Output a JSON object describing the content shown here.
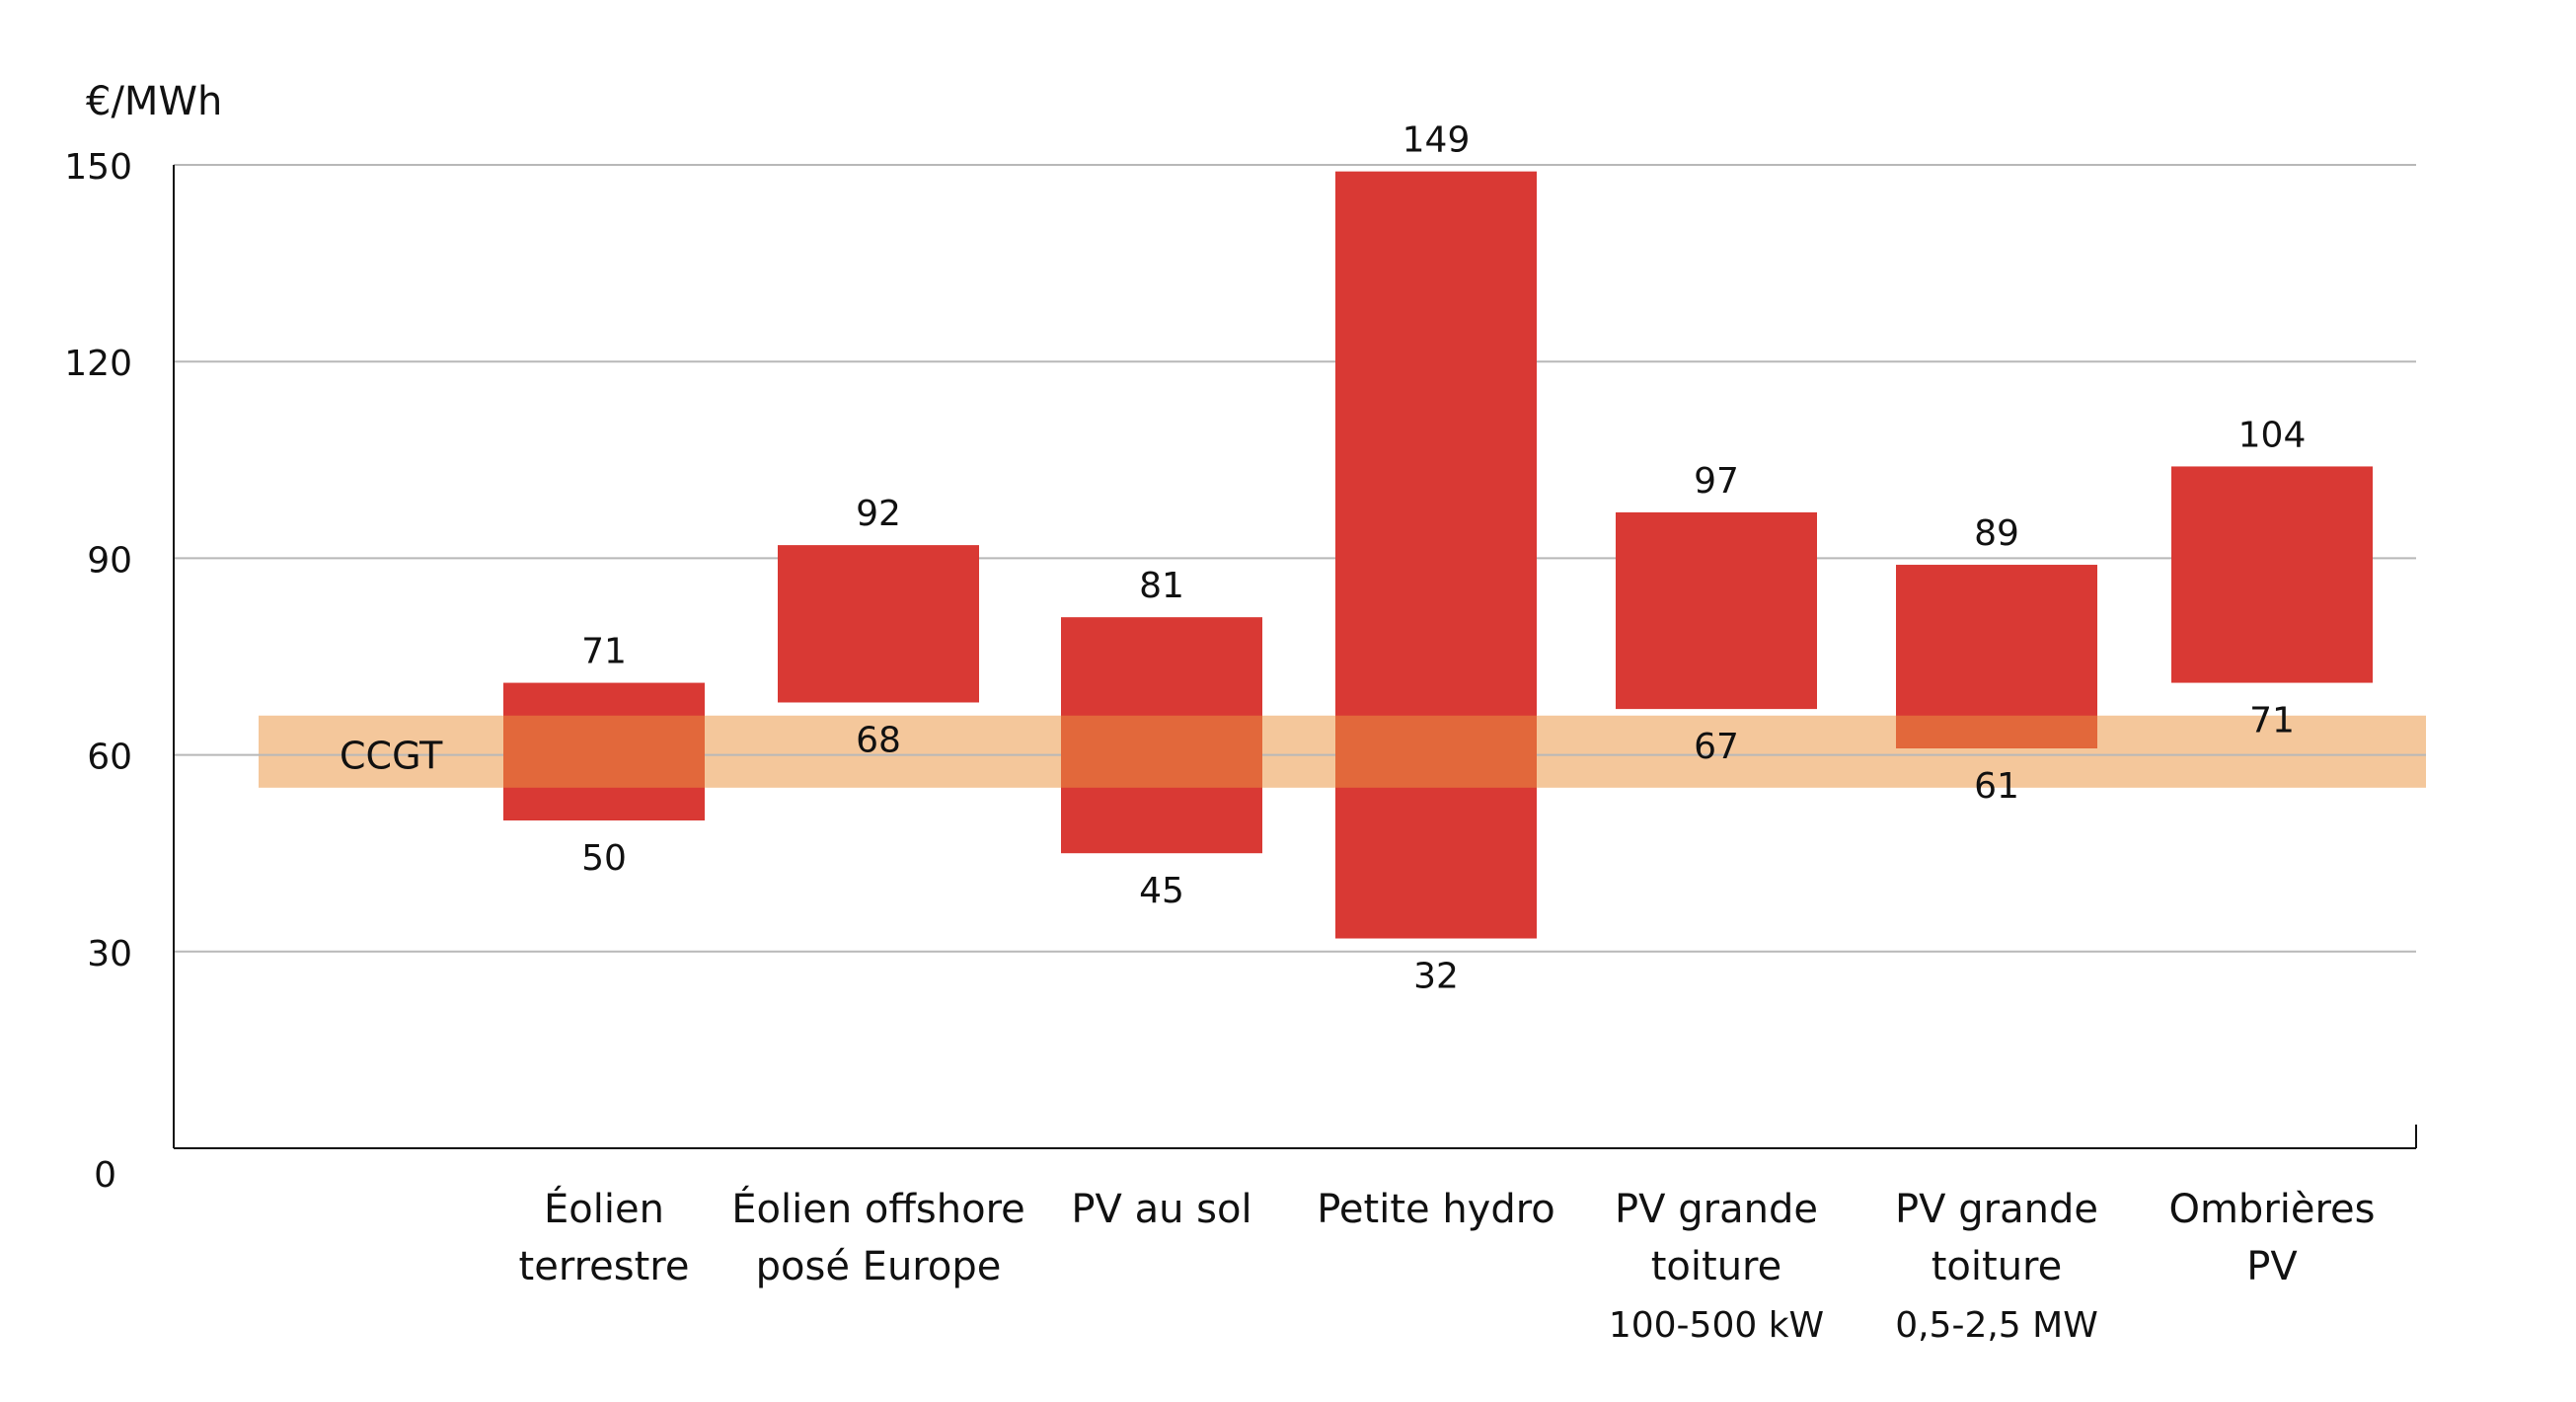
{
  "chart_data": {
    "type": "bar",
    "subtype": "floating-range",
    "ylabel": "€/MWh",
    "ylim": [
      0,
      150
    ],
    "yticks": [
      0,
      30,
      60,
      90,
      120,
      150
    ],
    "grid": true,
    "categories": [
      [
        "Éolien",
        "terrestre"
      ],
      [
        "Éolien offshore",
        "posé Europe"
      ],
      [
        "PV au sol"
      ],
      [
        "Petite hydro"
      ],
      [
        "PV grande",
        "toiture",
        "100-500 kW"
      ],
      [
        "PV grande",
        "toiture",
        "0,5-2,5 MW"
      ],
      [
        "Ombrières",
        "PV"
      ]
    ],
    "ranges": [
      {
        "low": 50,
        "high": 71
      },
      {
        "low": 68,
        "high": 92
      },
      {
        "low": 45,
        "high": 81
      },
      {
        "low": 32,
        "high": 149
      },
      {
        "low": 67,
        "high": 97
      },
      {
        "low": 61,
        "high": 89
      },
      {
        "low": 71,
        "high": 104
      }
    ],
    "reference_band": {
      "label": "CCGT",
      "low": 55,
      "high": 66,
      "center": 60
    },
    "colors": {
      "bar": "#d93934",
      "band": "#f4c79b",
      "overlap": "#e2683b",
      "grid": "#b8b8b8",
      "axis": "#111111"
    }
  }
}
